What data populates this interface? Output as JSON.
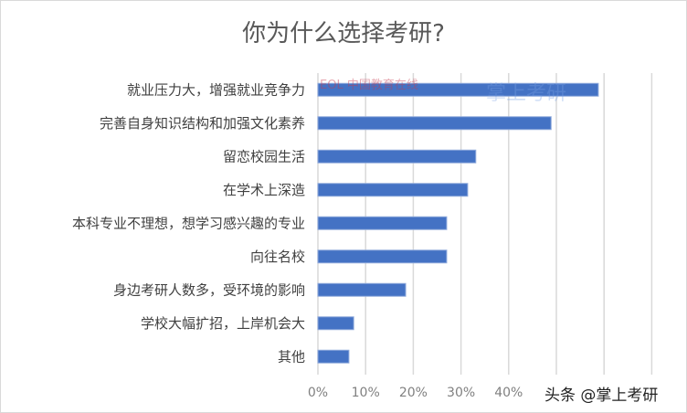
{
  "chart_data": {
    "type": "bar",
    "orientation": "horizontal",
    "title": "你为什么选择考研?",
    "categories": [
      "就业压力大，增强就业竞争力",
      "完善自身知识结构和加强文化素养",
      "留恋校园生活",
      "在学术上深造",
      "本科专业不理想，想学习感兴趣的专业",
      "向往名校",
      "身边考研人数多，受环境的影响",
      "学校大幅扩招，上岸机会大",
      "其他"
    ],
    "values": [
      58.8,
      48.9,
      33.1,
      31.4,
      27.0,
      27.0,
      18.4,
      7.5,
      6.5
    ],
    "unit": "%",
    "xlim": [
      0,
      70
    ],
    "tick_labels": [
      "0%",
      "10%",
      "20%",
      "30%",
      "40%"
    ],
    "grid": true,
    "bar_color": "#4472c4"
  },
  "watermarks": {
    "bottom": "头条 @掌上考研",
    "logo_left": "中国教育在线",
    "logo_right": "掌上考研"
  }
}
